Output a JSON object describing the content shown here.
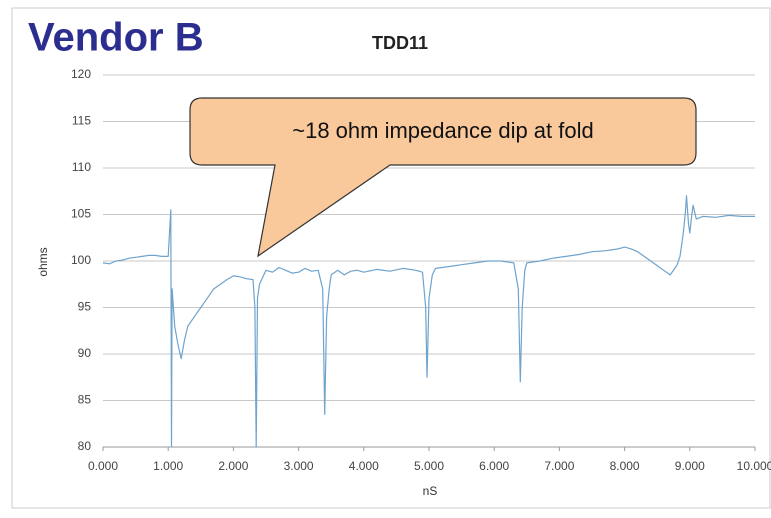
{
  "slide_title": "Vendor B",
  "callout": "~18 ohm impedance dip at fold",
  "chart_data": {
    "type": "line",
    "title": "TDD11",
    "x_label": "nS",
    "y_label": "ohms",
    "x": [
      0,
      0.1,
      0.2,
      0.3,
      0.4,
      0.5,
      0.6,
      0.7,
      0.8,
      0.9,
      1.0,
      1.02,
      1.04,
      1.05,
      1.06,
      1.08,
      1.1,
      1.15,
      1.2,
      1.25,
      1.3,
      1.4,
      1.5,
      1.6,
      1.7,
      1.8,
      1.9,
      2.0,
      2.1,
      2.2,
      2.3,
      2.33,
      2.35,
      2.37,
      2.4,
      2.5,
      2.6,
      2.7,
      2.8,
      2.9,
      3.0,
      3.1,
      3.2,
      3.3,
      3.37,
      3.4,
      3.43,
      3.47,
      3.5,
      3.6,
      3.7,
      3.8,
      3.9,
      4.0,
      4.2,
      4.4,
      4.6,
      4.8,
      4.9,
      4.95,
      4.97,
      5.0,
      5.05,
      5.1,
      5.3,
      5.5,
      5.7,
      5.9,
      6.1,
      6.3,
      6.37,
      6.4,
      6.43,
      6.47,
      6.5,
      6.7,
      6.9,
      7.1,
      7.3,
      7.5,
      7.7,
      7.9,
      8.0,
      8.1,
      8.2,
      8.3,
      8.5,
      8.6,
      8.7,
      8.8,
      8.85,
      8.9,
      8.93,
      8.95,
      8.98,
      9.0,
      9.03,
      9.05,
      9.1,
      9.2,
      9.4,
      9.6,
      9.8,
      10.0
    ],
    "series": [
      {
        "name": "TDD11",
        "color": "#6fa3cc",
        "values": [
          99.8,
          99.7,
          100.0,
          100.1,
          100.3,
          100.4,
          100.5,
          100.6,
          100.6,
          100.5,
          100.5,
          103,
          105.5,
          80,
          97,
          95,
          93,
          91,
          89.5,
          91.5,
          93,
          94,
          95,
          96,
          97,
          97.5,
          98,
          98.4,
          98.3,
          98.1,
          98,
          95,
          80,
          96,
          97.5,
          99,
          98.8,
          99.3,
          99,
          98.7,
          98.8,
          99.2,
          98.9,
          99,
          97,
          83.5,
          94,
          97,
          98.5,
          99,
          98.5,
          98.9,
          99,
          98.8,
          99.1,
          98.9,
          99.2,
          99,
          98.8,
          95,
          87.5,
          96,
          98.5,
          99.2,
          99.4,
          99.6,
          99.8,
          100,
          100,
          99.8,
          97,
          87,
          95,
          99,
          99.8,
          100,
          100.3,
          100.5,
          100.7,
          101,
          101.1,
          101.3,
          101.5,
          101.3,
          101,
          100.5,
          99.5,
          99,
          98.5,
          99.5,
          100.5,
          103,
          105,
          107,
          104,
          103,
          105,
          106,
          104.5,
          104.8,
          104.7,
          104.9,
          104.8,
          104.8
        ]
      }
    ],
    "xlim": [
      0,
      10
    ],
    "xticks": [
      {
        "value": 0,
        "label": "0.000"
      },
      {
        "value": 1,
        "label": "1.000"
      },
      {
        "value": 2,
        "label": "2.000"
      },
      {
        "value": 3,
        "label": "3.000"
      },
      {
        "value": 4,
        "label": "4.000"
      },
      {
        "value": 5,
        "label": "5.000"
      },
      {
        "value": 6,
        "label": "6.000"
      },
      {
        "value": 7,
        "label": "7.000"
      },
      {
        "value": 8,
        "label": "8.000"
      },
      {
        "value": 9,
        "label": "9.000"
      },
      {
        "value": 10,
        "label": "10.000"
      }
    ],
    "ylim": [
      80,
      120
    ],
    "yticks": [
      80,
      85,
      90,
      95,
      100,
      105,
      110,
      115,
      120
    ],
    "grid": true
  }
}
